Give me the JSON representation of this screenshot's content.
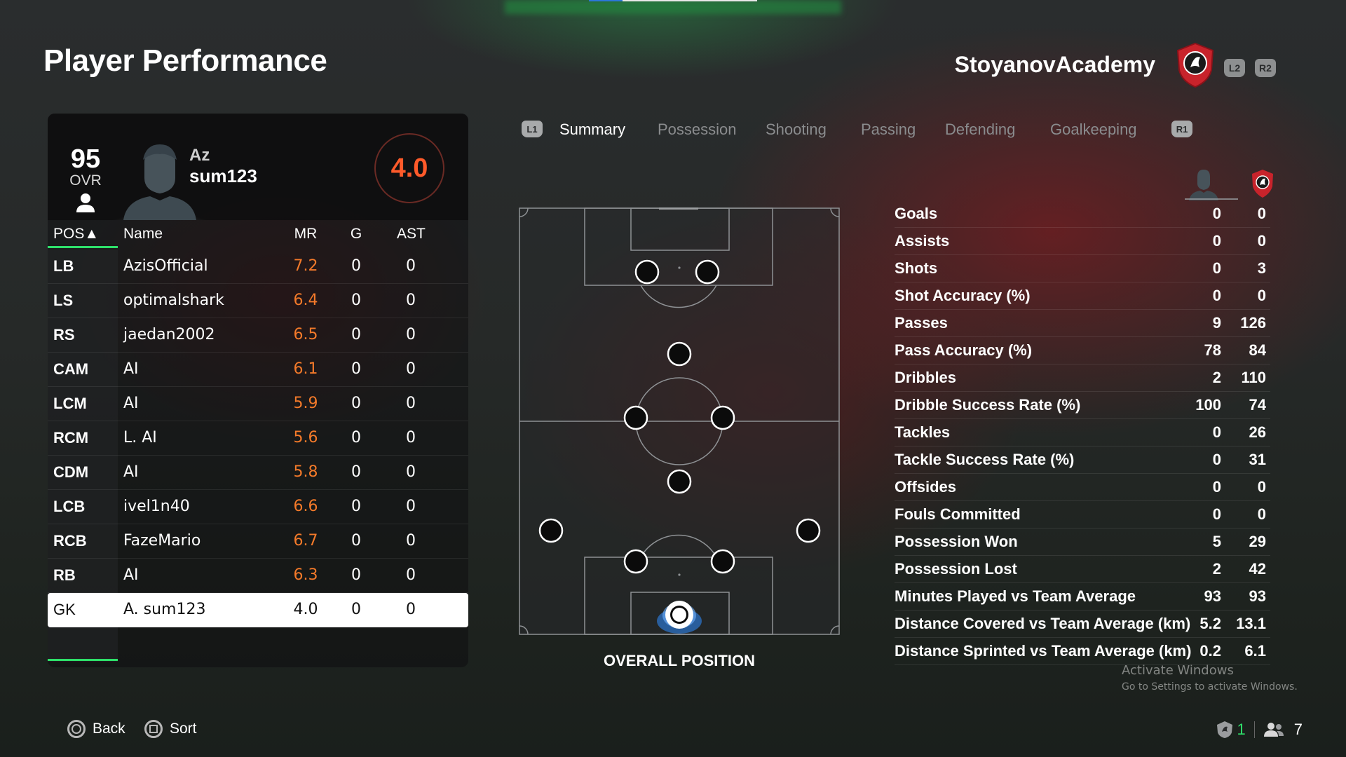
{
  "header": {
    "title": "Player Performance",
    "club_name": "StoyanovAcademy",
    "l2": "L2",
    "r2": "R2"
  },
  "player": {
    "ovr": "95",
    "ovr_label": "OVR",
    "first_name": "Az",
    "last_name": "sum123",
    "match_rating": "4.0"
  },
  "table": {
    "headers": {
      "pos": "POS▲",
      "name": "Name",
      "mr": "MR",
      "g": "G",
      "ast": "AST"
    },
    "rows": [
      {
        "pos": "LB",
        "name": "AzisOfficial",
        "mr": "7.2",
        "g": "0",
        "ast": "0"
      },
      {
        "pos": "LS",
        "name": "optimalshark",
        "mr": "6.4",
        "g": "0",
        "ast": "0"
      },
      {
        "pos": "RS",
        "name": "jaedan2002",
        "mr": "6.5",
        "g": "0",
        "ast": "0"
      },
      {
        "pos": "CAM",
        "name": "AI",
        "mr": "6.1",
        "g": "0",
        "ast": "0"
      },
      {
        "pos": "LCM",
        "name": "AI",
        "mr": "5.9",
        "g": "0",
        "ast": "0"
      },
      {
        "pos": "RCM",
        "name": "L. AI",
        "mr": "5.6",
        "g": "0",
        "ast": "0"
      },
      {
        "pos": "CDM",
        "name": "AI",
        "mr": "5.8",
        "g": "0",
        "ast": "0"
      },
      {
        "pos": "LCB",
        "name": "ivel1n40",
        "mr": "6.6",
        "g": "0",
        "ast": "0"
      },
      {
        "pos": "RCB",
        "name": "FazeMario",
        "mr": "6.7",
        "g": "0",
        "ast": "0"
      },
      {
        "pos": "RB",
        "name": "AI",
        "mr": "6.3",
        "g": "0",
        "ast": "0"
      },
      {
        "pos": "GK",
        "name": "A. sum123",
        "mr": "4.0",
        "g": "0",
        "ast": "0"
      }
    ]
  },
  "tabs": {
    "l1": "L1",
    "r1": "R1",
    "items": [
      "Summary",
      "Possession",
      "Shooting",
      "Passing",
      "Defending",
      "Goalkeeping"
    ],
    "active": "Summary"
  },
  "pitch": {
    "caption": "OVERALL POSITION"
  },
  "stats": [
    {
      "label": "Goals",
      "player": "0",
      "team": "0"
    },
    {
      "label": "Assists",
      "player": "0",
      "team": "0"
    },
    {
      "label": "Shots",
      "player": "0",
      "team": "3"
    },
    {
      "label": "Shot Accuracy (%)",
      "player": "0",
      "team": "0"
    },
    {
      "label": "Passes",
      "player": "9",
      "team": "126"
    },
    {
      "label": "Pass Accuracy (%)",
      "player": "78",
      "team": "84"
    },
    {
      "label": "Dribbles",
      "player": "2",
      "team": "110"
    },
    {
      "label": "Dribble Success Rate (%)",
      "player": "100",
      "team": "74"
    },
    {
      "label": "Tackles",
      "player": "0",
      "team": "26"
    },
    {
      "label": "Tackle Success Rate (%)",
      "player": "0",
      "team": "31"
    },
    {
      "label": "Offsides",
      "player": "0",
      "team": "0"
    },
    {
      "label": "Fouls Committed",
      "player": "0",
      "team": "0"
    },
    {
      "label": "Possession Won",
      "player": "5",
      "team": "29"
    },
    {
      "label": "Possession Lost",
      "player": "2",
      "team": "42"
    },
    {
      "label": "Minutes Played vs Team Average",
      "player": "93",
      "team": "93"
    },
    {
      "label": "Distance Covered vs Team Average (km)",
      "player": "5.2",
      "team": "13.1"
    },
    {
      "label": "Distance Sprinted vs Team Average (km)",
      "player": "0.2",
      "team": "6.1"
    }
  ],
  "watermark": {
    "line1": "Activate Windows",
    "line2": "Go to Settings to activate Windows."
  },
  "footer": {
    "back": "Back",
    "sort": "Sort",
    "club_count": "1",
    "players_count": "7"
  },
  "colors": {
    "accent_green": "#2ee06a",
    "rating_orange": "#f47a2a",
    "crest_red": "#c8232b"
  },
  "icons": [
    "person-icon",
    "avatar-silhouette",
    "club-crest-icon",
    "circle-button-icon",
    "square-button-icon",
    "players-icon"
  ]
}
